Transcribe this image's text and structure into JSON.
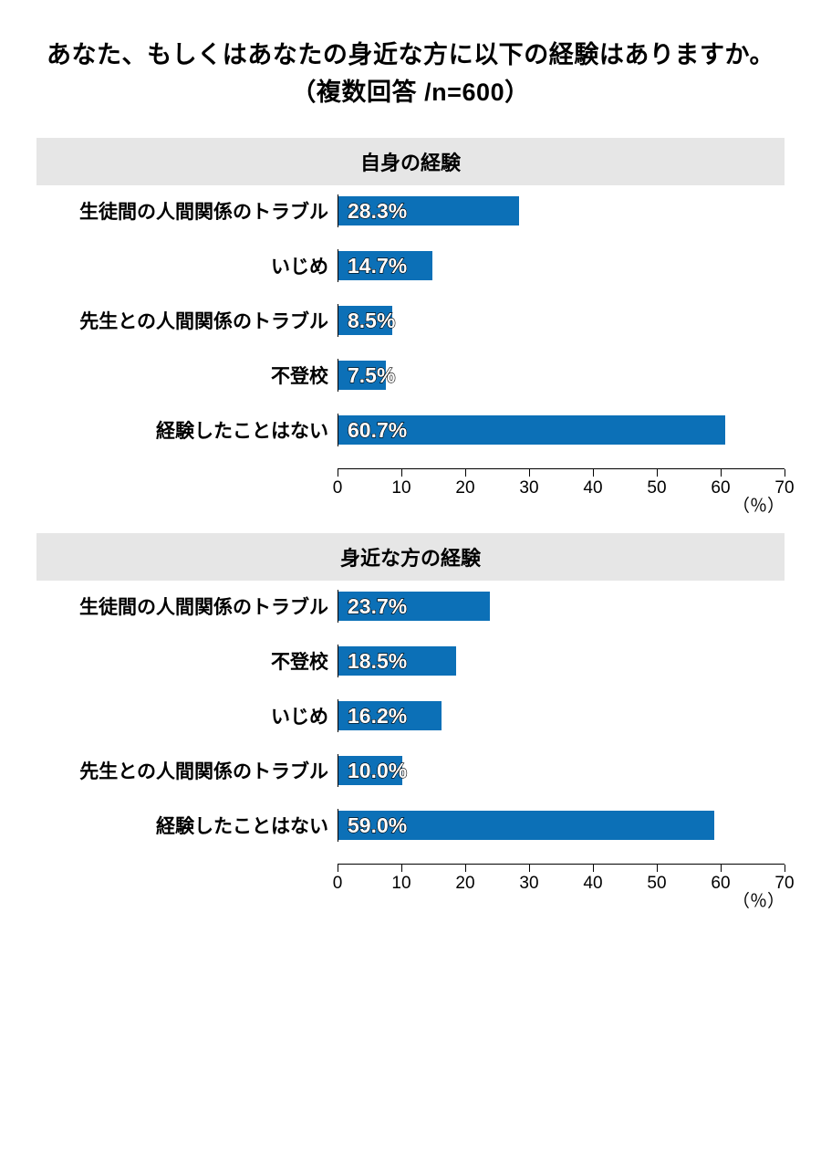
{
  "main_title": "あなた、もしくはあなたの身近な方に以下の経験はありますか。（複数回答 /n=600）",
  "main_title_fontsize": 27,
  "header_bg": "#e6e6e6",
  "header_fontsize": 22,
  "label_width": 330,
  "row_label_fontsize": 21,
  "bar_value_fontsize": 23,
  "tick_label_fontsize": 19,
  "bar_color": "#0c70b7",
  "xmax": 70,
  "xticks": [
    0,
    10,
    20,
    30,
    40,
    50,
    60,
    70
  ],
  "axis_unit": "（％）",
  "sections": [
    {
      "title": "自身の経験",
      "rows": [
        {
          "label": "生徒間の人間関係のトラブル",
          "value": 28.3,
          "display": "28.3%"
        },
        {
          "label": "いじめ",
          "value": 14.7,
          "display": "14.7%"
        },
        {
          "label": "先生との人間関係のトラブル",
          "value": 8.5,
          "display": "8.5%"
        },
        {
          "label": "不登校",
          "value": 7.5,
          "display": "7.5%"
        },
        {
          "label": "経験したことはない",
          "value": 60.7,
          "display": "60.7%"
        }
      ]
    },
    {
      "title": "身近な方の経験",
      "rows": [
        {
          "label": "生徒間の人間関係のトラブル",
          "value": 23.7,
          "display": "23.7%"
        },
        {
          "label": "不登校",
          "value": 18.5,
          "display": "18.5%"
        },
        {
          "label": "いじめ",
          "value": 16.2,
          "display": "16.2%"
        },
        {
          "label": "先生との人間関係のトラブル",
          "value": 10.0,
          "display": "10.0%"
        },
        {
          "label": "経験したことはない",
          "value": 59.0,
          "display": "59.0%"
        }
      ]
    }
  ]
}
